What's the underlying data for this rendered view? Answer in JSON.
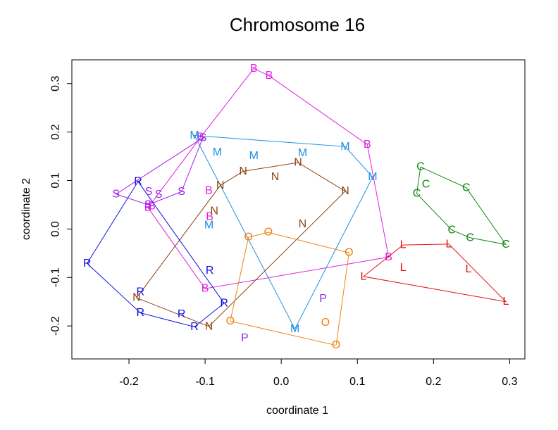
{
  "chart_data": {
    "type": "scatter",
    "title": "Chromosome 16",
    "xlabel": "coordinate 1",
    "ylabel": "coordinate 2",
    "xlim": [
      -0.275,
      0.32
    ],
    "ylim": [
      -0.268,
      0.349
    ],
    "xticks": [
      -0.2,
      -0.1,
      0.0,
      0.1,
      0.2,
      0.3
    ],
    "xtick_labels": [
      "-0.2",
      "-0.1",
      "0.0",
      "0.1",
      "0.2",
      "0.3"
    ],
    "yticks": [
      -0.2,
      -0.1,
      0.0,
      0.1,
      0.2,
      0.3
    ],
    "ytick_labels": [
      "-0.2",
      "-0.1",
      "0.0",
      "0.1",
      "0.2",
      "0.3"
    ],
    "grid": false,
    "series": [
      {
        "name": "B",
        "label": "B",
        "color": "#E020E0",
        "points": [
          [
            -0.036,
            0.331
          ],
          [
            -0.016,
            0.316
          ],
          [
            0.113,
            0.174
          ],
          [
            0.141,
            -0.058
          ],
          [
            -0.1,
            -0.123
          ],
          [
            -0.095,
            0.079
          ],
          [
            -0.094,
            0.025
          ],
          [
            -0.175,
            0.044
          ],
          [
            -0.17,
            0.047
          ],
          [
            -0.106,
            0.189
          ]
        ],
        "hull": [
          [
            -0.036,
            0.331
          ],
          [
            -0.016,
            0.316
          ],
          [
            0.113,
            0.174
          ],
          [
            0.141,
            -0.058
          ],
          [
            -0.1,
            -0.123
          ],
          [
            -0.175,
            0.044
          ],
          [
            -0.106,
            0.189
          ]
        ]
      },
      {
        "name": "M",
        "label": "M",
        "color": "#1E90E0",
        "points": [
          [
            -0.114,
            0.193
          ],
          [
            0.084,
            0.17
          ],
          [
            0.12,
            0.107
          ],
          [
            0.018,
            -0.206
          ],
          [
            -0.095,
            0.008
          ],
          [
            -0.084,
            0.158
          ],
          [
            -0.036,
            0.151
          ],
          [
            0.028,
            0.157
          ]
        ],
        "hull": [
          [
            -0.114,
            0.193
          ],
          [
            0.084,
            0.17
          ],
          [
            0.12,
            0.107
          ],
          [
            0.018,
            -0.206
          ]
        ]
      },
      {
        "name": "N",
        "label": "N",
        "color": "#8B4513",
        "points": [
          [
            -0.19,
            -0.142
          ],
          [
            -0.095,
            -0.201
          ],
          [
            0.084,
            0.078
          ],
          [
            0.022,
            0.137
          ],
          [
            -0.05,
            0.119
          ],
          [
            -0.08,
            0.09
          ],
          [
            -0.008,
            0.107
          ],
          [
            -0.088,
            0.037
          ],
          [
            0.028,
            0.01
          ]
        ],
        "hull": [
          [
            -0.19,
            -0.142
          ],
          [
            -0.095,
            -0.201
          ],
          [
            0.084,
            0.078
          ],
          [
            0.022,
            0.137
          ],
          [
            -0.05,
            0.119
          ],
          [
            -0.08,
            0.09
          ]
        ]
      },
      {
        "name": "R",
        "label": "R",
        "color": "#1010E0",
        "points": [
          [
            -0.188,
            0.098
          ],
          [
            -0.255,
            -0.071
          ],
          [
            -0.185,
            -0.173
          ],
          [
            -0.114,
            -0.202
          ],
          [
            -0.075,
            -0.153
          ],
          [
            -0.094,
            -0.086
          ],
          [
            -0.185,
            -0.13
          ],
          [
            -0.131,
            -0.176
          ]
        ],
        "hull": [
          [
            -0.188,
            0.098
          ],
          [
            -0.255,
            -0.071
          ],
          [
            -0.185,
            -0.173
          ],
          [
            -0.114,
            -0.202
          ],
          [
            -0.075,
            -0.153
          ]
        ]
      },
      {
        "name": "S",
        "label": "S",
        "color": "#A020F0",
        "points": [
          [
            -0.103,
            0.188
          ],
          [
            -0.131,
            0.077
          ],
          [
            -0.217,
            0.072
          ],
          [
            -0.175,
            0.05
          ],
          [
            -0.161,
            0.071
          ],
          [
            -0.174,
            0.077
          ]
        ],
        "hull": [
          [
            -0.103,
            0.188
          ],
          [
            -0.131,
            0.077
          ],
          [
            -0.175,
            0.05
          ],
          [
            -0.217,
            0.072
          ]
        ]
      },
      {
        "name": "O",
        "label": "O",
        "color": "#F08010",
        "points": [
          [
            -0.067,
            -0.19
          ],
          [
            -0.043,
            -0.017
          ],
          [
            -0.017,
            -0.007
          ],
          [
            0.089,
            -0.049
          ],
          [
            0.072,
            -0.24
          ],
          [
            0.058,
            -0.193
          ]
        ],
        "hull": [
          [
            -0.067,
            -0.19
          ],
          [
            -0.043,
            -0.017
          ],
          [
            -0.017,
            -0.007
          ],
          [
            0.089,
            -0.049
          ],
          [
            0.072,
            -0.24
          ]
        ]
      },
      {
        "name": "P",
        "label": "P",
        "color": "#8A2BE2",
        "points": [
          [
            0.055,
            -0.144
          ],
          [
            -0.048,
            -0.225
          ]
        ],
        "hull": []
      },
      {
        "name": "L",
        "label": "L",
        "color": "#E01010",
        "points": [
          [
            0.16,
            -0.033
          ],
          [
            0.22,
            -0.031
          ],
          [
            0.295,
            -0.15
          ],
          [
            0.108,
            -0.098
          ],
          [
            0.16,
            -0.08
          ],
          [
            0.246,
            -0.083
          ]
        ],
        "hull": [
          [
            0.16,
            -0.033
          ],
          [
            0.22,
            -0.031
          ],
          [
            0.295,
            -0.15
          ],
          [
            0.108,
            -0.098
          ]
        ]
      },
      {
        "name": "C",
        "label": "C",
        "color": "#118811",
        "points": [
          [
            0.183,
            0.128
          ],
          [
            0.243,
            0.085
          ],
          [
            0.295,
            -0.032
          ],
          [
            0.224,
            -0.002
          ],
          [
            0.178,
            0.073
          ],
          [
            0.19,
            0.092
          ],
          [
            0.248,
            -0.018
          ]
        ],
        "hull": [
          [
            0.183,
            0.128
          ],
          [
            0.243,
            0.085
          ],
          [
            0.295,
            -0.032
          ],
          [
            0.248,
            -0.018
          ],
          [
            0.224,
            -0.002
          ],
          [
            0.178,
            0.073
          ]
        ]
      }
    ]
  }
}
